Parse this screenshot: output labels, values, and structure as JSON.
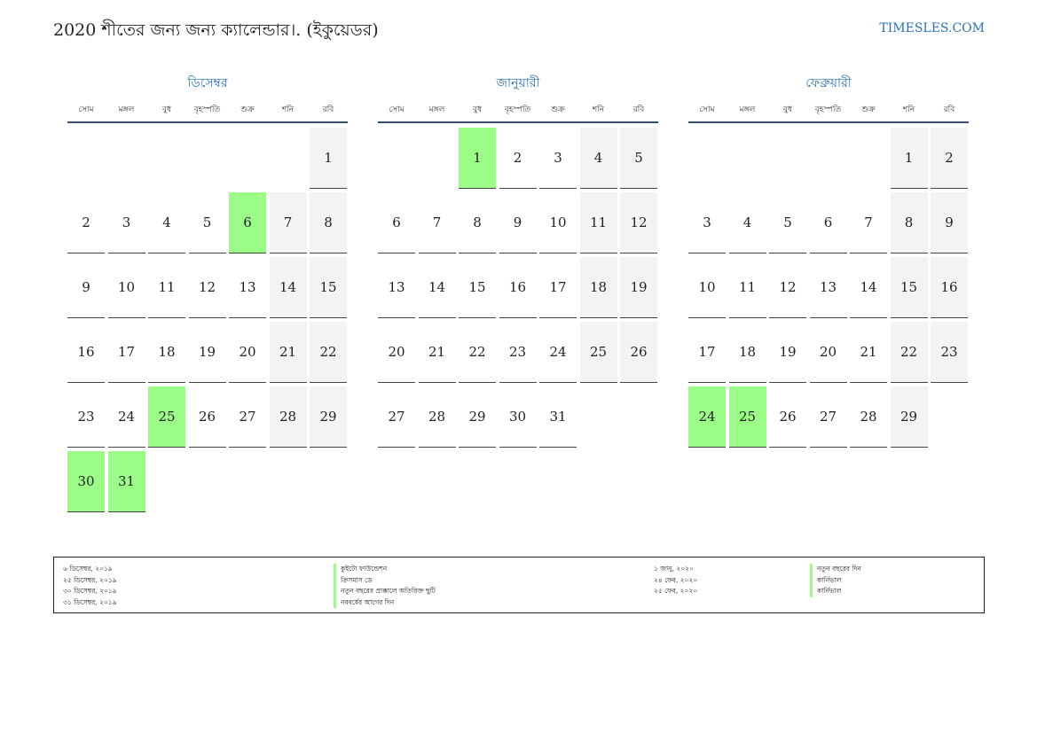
{
  "header": {
    "title": "2020 শীতের জন্য জন্য ক্যালেন্ডার।. (ইকুয়েডর)",
    "site": "TIMESLES.COM"
  },
  "colors": {
    "accent": "#2a72b5",
    "holiday": "#9cfc88",
    "weekend": "#f3f3f3",
    "rule": "#34507a"
  },
  "weekdays": [
    "সোম",
    "মঙ্গল",
    "বুধ",
    "বৃহস্পতি",
    "শুক্র",
    "শনি",
    "রবি"
  ],
  "months": [
    {
      "name": "ডিসেম্বর",
      "start_offset": 6,
      "days_in_month": 31,
      "holidays": [
        6,
        25,
        30,
        31
      ]
    },
    {
      "name": "জানুয়ারী",
      "start_offset": 2,
      "days_in_month": 31,
      "holidays": [
        1
      ]
    },
    {
      "name": "ফেব্রুয়ারী",
      "start_offset": 5,
      "days_in_month": 29,
      "holidays": [
        24,
        25
      ]
    }
  ],
  "legend": {
    "left_dates": [
      "৬ ডিসেম্বর, ২০১৯",
      "২৫ ডিসেম্বর, ২০১৯",
      "৩০ ডিসেম্বর, ২০১৯",
      "৩১ ডিসেম্বর, ২০১৯"
    ],
    "left_names": [
      "কুইটো ফাউন্ডেশন",
      "ক্রিসমাস ডে",
      "নতুন বছরের প্রাক্কালে অতিরিক্ত ছুটি",
      "নববর্ষের আগের দিন"
    ],
    "right_dates": [
      "১ জানু, ২০২০",
      "২৪ ফেব, ২০২০",
      "২৫ ফেব, ২০২০"
    ],
    "right_names": [
      "নতুন বছরের দিন",
      "কার্নিভাল",
      "কার্নিভাল"
    ]
  }
}
